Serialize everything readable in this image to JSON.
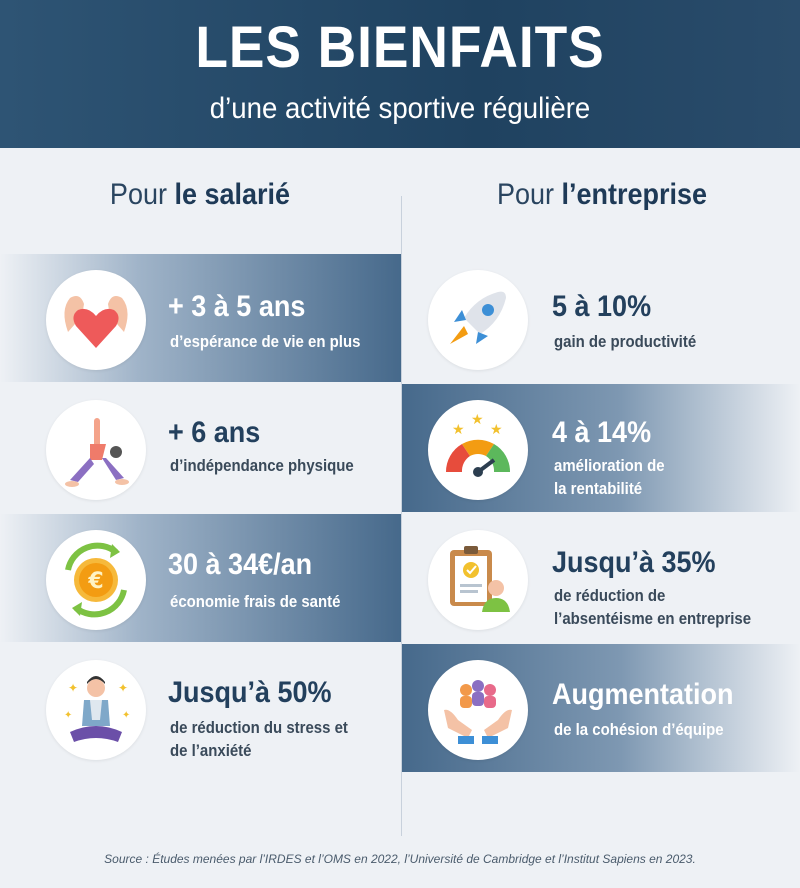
{
  "header": {
    "title": "LES BIENFAITS",
    "subtitle": "d’une activité sportive régulière"
  },
  "columns": {
    "left": {
      "prefix": "Pour ",
      "bold": "le salarié"
    },
    "right": {
      "prefix": "Pour ",
      "bold": "l’entreprise"
    }
  },
  "left_items": [
    {
      "stat": "+ 3 à 5 ans",
      "desc": "d’espérance de vie en plus",
      "icon": "heart-muscle-icon"
    },
    {
      "stat": "+ 6 ans",
      "desc": "d’indépendance physique",
      "icon": "yoga-pose-icon"
    },
    {
      "stat": "30 à 34€/an",
      "desc": "économie frais de santé",
      "icon": "euro-coin-icon"
    },
    {
      "stat": "Jusqu’à 50%",
      "desc_line1": "de réduction du stress et",
      "desc_line2": "de l’anxiété",
      "icon": "meditation-icon"
    }
  ],
  "right_items": [
    {
      "stat": "5 à 10%",
      "desc": "gain de productivité",
      "icon": "rocket-icon"
    },
    {
      "stat": "4 à 14%",
      "desc_line1": "amélioration de",
      "desc_line2": "la rentabilité",
      "icon": "gauge-icon"
    },
    {
      "stat": "Jusqu’à 35%",
      "desc_line1": "de réduction de",
      "desc_line2": "l’absentéisme en entreprise",
      "icon": "clipboard-person-icon"
    },
    {
      "stat": "Augmentation",
      "desc": "de la cohésion d’équipe",
      "icon": "team-hands-icon"
    }
  ],
  "source": "Source : Études menées par l’IRDES et l’OMS en 2022, l’Université de Cambridge et l’Institut Sapiens en 2023.",
  "colors": {
    "header": "#1f4260",
    "band": "#46698b",
    "text_dark": "#23405d",
    "background": "#eef1f5"
  }
}
